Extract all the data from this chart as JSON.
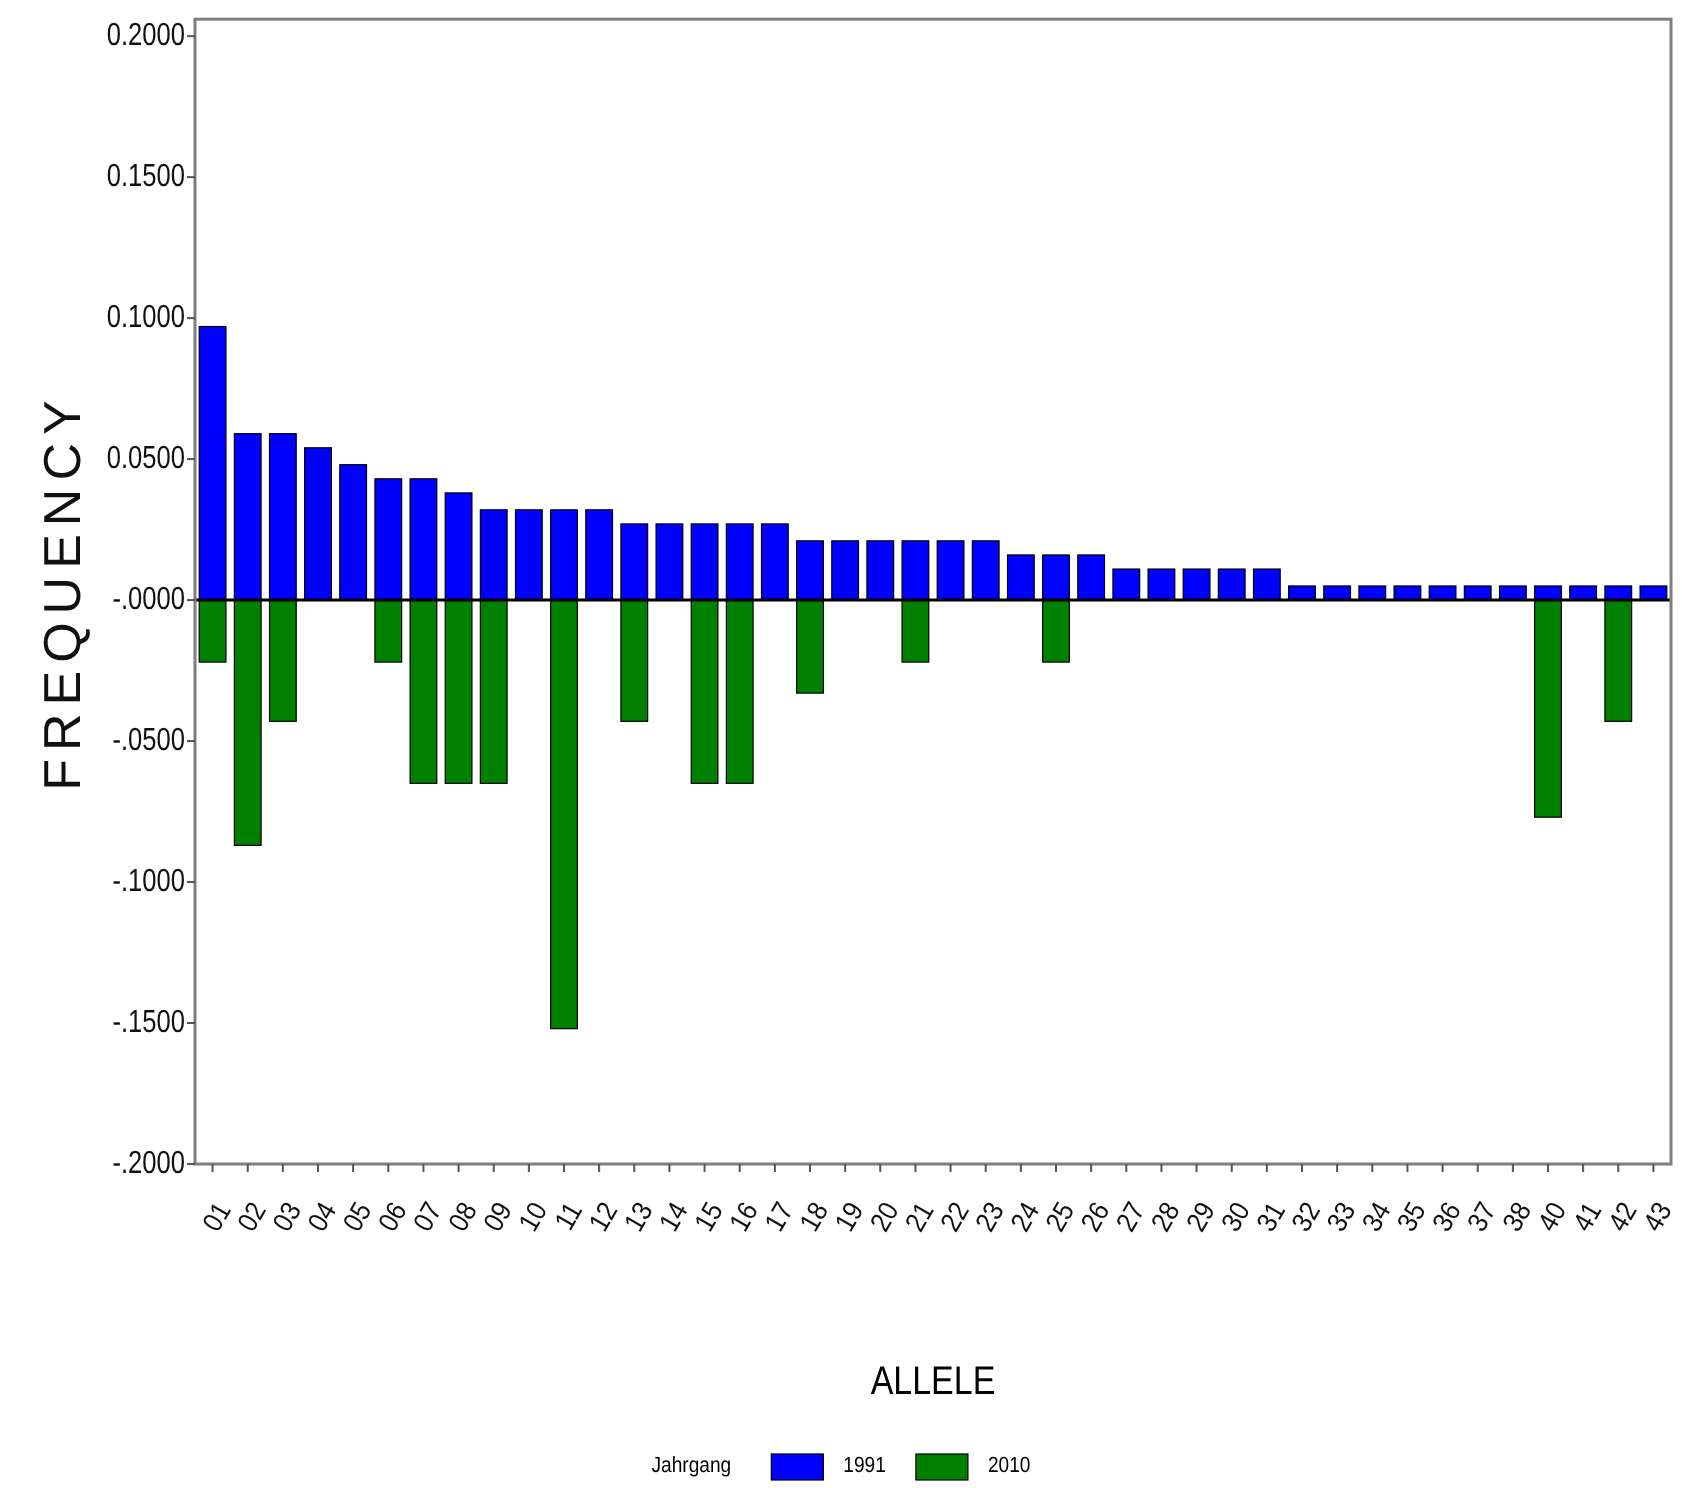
{
  "chart_data": {
    "type": "bar",
    "xlabel": "ALLELE",
    "ylabel": "FREQUENCY",
    "legend_title": "Jahrgang",
    "categories": [
      "01",
      "02",
      "03",
      "04",
      "05",
      "06",
      "07",
      "08",
      "09",
      "10",
      "11",
      "12",
      "13",
      "14",
      "15",
      "16",
      "17",
      "18",
      "19",
      "20",
      "21",
      "22",
      "23",
      "24",
      "25",
      "26",
      "27",
      "28",
      "29",
      "30",
      "31",
      "32",
      "33",
      "34",
      "35",
      "36",
      "37",
      "38",
      "40",
      "41",
      "42",
      "43"
    ],
    "series": [
      {
        "name": "1991",
        "color": "#0000ff",
        "values": [
          0.097,
          0.059,
          0.059,
          0.054,
          0.048,
          0.043,
          0.043,
          0.038,
          0.032,
          0.032,
          0.032,
          0.032,
          0.027,
          0.027,
          0.027,
          0.027,
          0.027,
          0.021,
          0.021,
          0.021,
          0.021,
          0.021,
          0.021,
          0.016,
          0.016,
          0.016,
          0.011,
          0.011,
          0.011,
          0.011,
          0.011,
          0.005,
          0.005,
          0.005,
          0.005,
          0.005,
          0.005,
          0.005,
          0.005,
          0.005,
          0.005,
          0.005
        ]
      },
      {
        "name": "2010",
        "color": "#008000",
        "values": [
          -0.022,
          -0.087,
          -0.043,
          null,
          null,
          -0.022,
          -0.065,
          -0.065,
          -0.065,
          null,
          -0.152,
          null,
          -0.043,
          null,
          -0.065,
          -0.065,
          null,
          -0.033,
          null,
          null,
          -0.022,
          null,
          null,
          null,
          -0.022,
          null,
          null,
          null,
          null,
          null,
          null,
          null,
          null,
          null,
          null,
          null,
          null,
          null,
          -0.077,
          null,
          -0.043,
          null
        ]
      }
    ],
    "stacked": true,
    "ylim": [
      -0.2,
      0.206
    ],
    "yticks": [
      {
        "value": -0.2,
        "label": "-.2000"
      },
      {
        "value": -0.15,
        "label": "-.1500"
      },
      {
        "value": -0.1,
        "label": "-.1000"
      },
      {
        "value": -0.05,
        "label": "-.0500"
      },
      {
        "value": 0,
        "label": "-.0000"
      },
      {
        "value": 0.05,
        "label": "0.0500"
      },
      {
        "value": 0.1,
        "label": "0.1000"
      },
      {
        "value": 0.15,
        "label": "0.1500"
      },
      {
        "value": 0.2,
        "label": "0.2000"
      }
    ],
    "ref_lines": [
      {
        "axis": "y",
        "value": 0,
        "color": "#000000"
      }
    ],
    "legend": "bottom"
  }
}
